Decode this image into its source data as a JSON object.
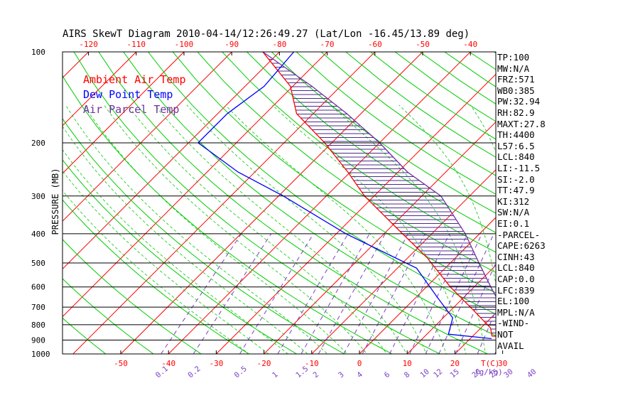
{
  "chart_data": {
    "type": "skew-t",
    "title": "AIRS SkewT Diagram 2010-04-14/12:26:49.27 (Lat/Lon -16.45/13.89 deg)",
    "ylabel": "PRESSURE (MB)",
    "xlabel_bottom_temp": "T(C)",
    "xlabel_bottom_mixing": "(g/kg)",
    "y_scale": "log",
    "ylim": [
      1000,
      100
    ],
    "pressure_ticks": [
      100,
      200,
      300,
      400,
      500,
      600,
      700,
      800,
      900,
      1000
    ],
    "top_temp_ticks": [
      -120,
      -110,
      -100,
      -90,
      -80,
      -70,
      -60,
      -50,
      -40
    ],
    "bottom_temp_ticks": [
      -50,
      -40,
      -30,
      -20,
      -10,
      0,
      10,
      20,
      30
    ],
    "mixing_ratio_ticks": [
      "0.1",
      "0.2",
      "0.5",
      "1",
      "1.5",
      "2",
      "3",
      "4",
      "6",
      "8",
      "10",
      "12",
      "15",
      "20",
      "25",
      "30",
      "40"
    ],
    "legend": [
      {
        "label": "Ambient Air Temp",
        "color": "#ff0000"
      },
      {
        "label": "Dew Point Temp",
        "color": "#0000ff"
      },
      {
        "label": "Air Parcel Temp",
        "color": "#7030a0"
      }
    ],
    "colors": {
      "isotherm": "#ff0000",
      "dry_adiabat": "#00cc00",
      "moist_adiabat": "#22cc22",
      "mixing_ratio": "#7b3fc4",
      "cape_hatch": "#4b2a8c"
    },
    "series": [
      {
        "name": "Ambient Air Temp",
        "pressure": [
          890,
          872,
          820,
          720,
          600,
          480,
          380,
          300,
          250,
          200,
          160,
          130,
          100
        ],
        "temperature": [
          33.5,
          24.0,
          22.0,
          15.0,
          5.0,
          -6.0,
          -19.0,
          -32.0,
          -40.5,
          -51.5,
          -63.5,
          -70.5,
          -83.5
        ]
      },
      {
        "name": "Dew Point Temp",
        "pressure": [
          890,
          860,
          760,
          650,
          520,
          400,
          300,
          250,
          200,
          160,
          130,
          100
        ],
        "temperature": [
          24.5,
          14.5,
          12.0,
          4.5,
          -6.0,
          -28.0,
          -49.0,
          -63.5,
          -78.0,
          -78.0,
          -76.0,
          -77.0
        ]
      },
      {
        "name": "Air Parcel Temp",
        "pressure": [
          890,
          840,
          700,
          600,
          500,
          400,
          300,
          250,
          200,
          160,
          130,
          100
        ],
        "temperature": [
          33.5,
          25.6,
          20.0,
          13.5,
          6.0,
          -3.0,
          -16.0,
          -28.0,
          -40.0,
          -53.0,
          -66.0,
          -83.5
        ]
      }
    ]
  },
  "indices": [
    "TP:100",
    "MW:N/A",
    "FRZ:571",
    "WB0:385",
    "PW:32.94",
    "RH:82.9",
    "MAXT:27.8",
    "TH:4400",
    "L57:6.5",
    "LCL:840",
    "LI:-11.5",
    "SI:-2.0",
    "TT:47.9",
    "KI:312",
    "SW:N/A",
    "EI:0.1",
    "-PARCEL-",
    "CAPE:6263",
    "CINH:43",
    "LCL:840",
    "CAP:0.0",
    "LFC:839",
    "EL:100",
    "MPL:N/A",
    "-WIND-",
    "NOT",
    "AVAIL"
  ]
}
